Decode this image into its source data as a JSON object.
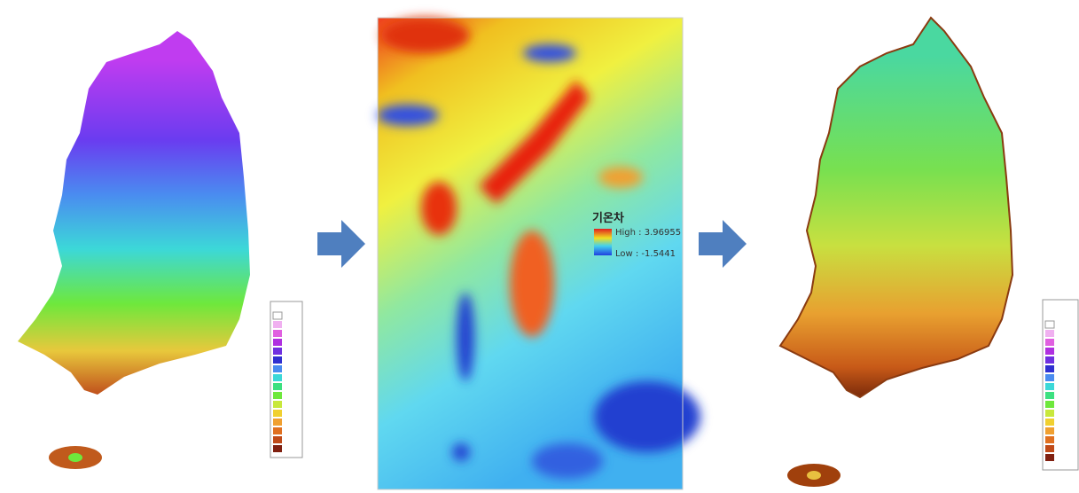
{
  "middle_legend": {
    "title": "기온차",
    "high": "High : 3.96955",
    "low": "Low : -1.5441"
  }
}
